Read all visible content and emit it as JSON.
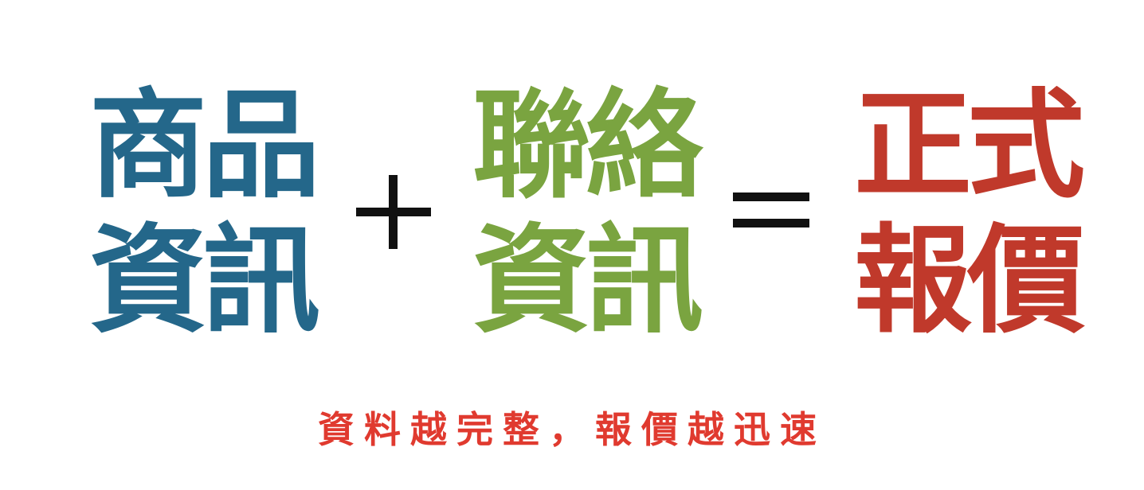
{
  "equation": {
    "product_info": {
      "line1": "商品",
      "line2": "資訊"
    },
    "plus_symbol": "+",
    "contact_info": {
      "line1": "聯絡",
      "line2": "資訊"
    },
    "equals_symbol": "=",
    "formal_quote": {
      "line1": "正式",
      "line2": "報價"
    }
  },
  "tagline": "資料越完整，報價越迅速",
  "colors": {
    "product_info": "#24678a",
    "contact_info": "#7aa440",
    "formal_quote": "#c0392b",
    "tagline": "#e03a2f",
    "operators": "#111111"
  }
}
